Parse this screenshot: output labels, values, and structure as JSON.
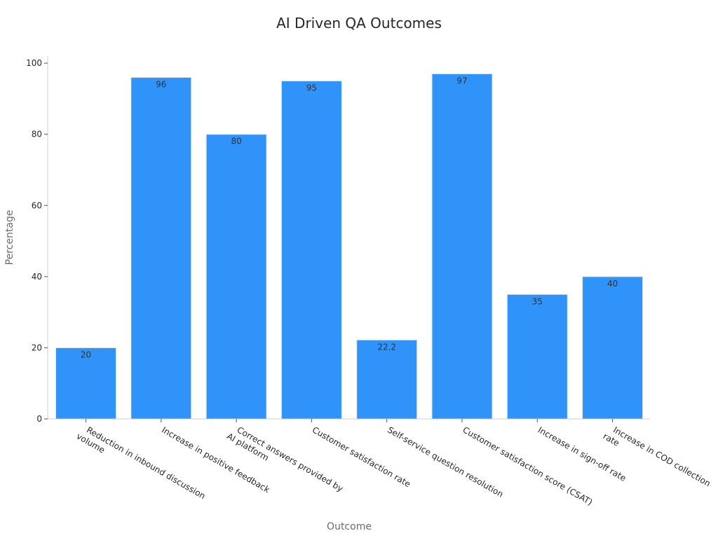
{
  "chart_data": {
    "type": "bar",
    "title": "AI Driven QA Outcomes",
    "xlabel": "Outcome",
    "ylabel": "Percentage",
    "ylim": [
      0,
      102
    ],
    "yticks": [
      0,
      20,
      40,
      60,
      80,
      100
    ],
    "grid": false,
    "bar_color": "#2f93fa",
    "categories": [
      [
        "Reduction in inbound discussion",
        "volume"
      ],
      [
        "Increase in positive feedback"
      ],
      [
        "Correct answers provided by",
        "AI platform"
      ],
      [
        "Customer satisfaction rate"
      ],
      [
        "Self-service question resolution"
      ],
      [
        "Customer satisfaction score (CSAT)"
      ],
      [
        "Increase in sign-off rate"
      ],
      [
        "Increase in COD collection",
        "rate"
      ]
    ],
    "values": [
      20,
      96,
      80,
      95,
      22.2,
      97,
      35,
      40
    ],
    "data_labels": [
      "20",
      "96",
      "80",
      "95",
      "22.2",
      "97",
      "35",
      "40"
    ]
  }
}
